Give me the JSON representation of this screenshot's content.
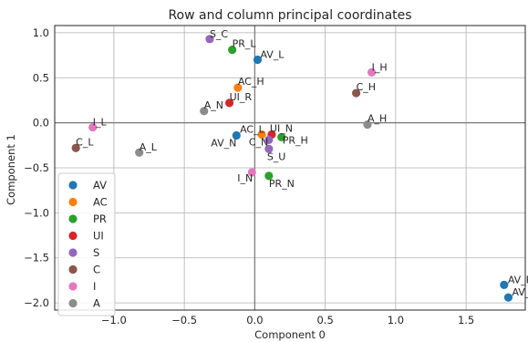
{
  "chart_data": {
    "type": "scatter",
    "title": "Row and column principal coordinates",
    "xlabel": "Component 0",
    "ylabel": "Component 1",
    "xlim": [
      -1.42,
      1.92
    ],
    "ylim": [
      -2.08,
      1.08
    ],
    "xticks": [
      -1.0,
      -0.5,
      0.0,
      0.5,
      1.0,
      1.5
    ],
    "xtick_labels": [
      "−1.0",
      "−0.5",
      "0.0",
      "0.5",
      "1.0",
      "1.5"
    ],
    "yticks": [
      -2.0,
      -1.5,
      -1.0,
      -0.5,
      0.0,
      0.5,
      1.0
    ],
    "ytick_labels": [
      "−2.0",
      "−1.5",
      "−1.0",
      "−0.5",
      "0.0",
      "0.5",
      "1.0"
    ],
    "grid": true,
    "legend_position": "lower-left",
    "zero_lines": true,
    "series": [
      {
        "name": "AV",
        "color": "#1f77b4",
        "points": [
          {
            "x": 0.02,
            "y": 0.7,
            "label": "AV_L",
            "dx": 3,
            "dy": -2
          },
          {
            "x": -0.13,
            "y": -0.14,
            "label": "AV_N",
            "dx": -28,
            "dy": 12
          },
          {
            "x": 1.77,
            "y": -1.8,
            "label": "AV_P",
            "dx": 4,
            "dy": -2
          },
          {
            "x": 1.8,
            "y": -1.94,
            "label": "AV_",
            "dx": 4,
            "dy": -2
          }
        ]
      },
      {
        "name": "AC",
        "color": "#ff7f0e",
        "points": [
          {
            "x": -0.12,
            "y": 0.39,
            "label": "AC_H",
            "dx": 0,
            "dy": -3
          },
          {
            "x": 0.05,
            "y": -0.13,
            "label": "AC_L",
            "dx": -24,
            "dy": -2
          }
        ]
      },
      {
        "name": "PR",
        "color": "#2ca02c",
        "points": [
          {
            "x": -0.16,
            "y": 0.81,
            "label": "PR_L",
            "dx": 0,
            "dy": -3
          },
          {
            "x": 0.19,
            "y": -0.16,
            "label": "PR_H",
            "dx": 1,
            "dy": 7
          },
          {
            "x": 0.1,
            "y": -0.59,
            "label": "PR_N",
            "dx": 0,
            "dy": 12
          }
        ]
      },
      {
        "name": "UI",
        "color": "#d62728",
        "points": [
          {
            "x": -0.18,
            "y": 0.22,
            "label": "UI_R",
            "dx": 0,
            "dy": -3
          },
          {
            "x": 0.12,
            "y": -0.13,
            "label": "UI_N",
            "dx": -2,
            "dy": -3
          }
        ]
      },
      {
        "name": "S",
        "color": "#9467bd",
        "points": [
          {
            "x": -0.32,
            "y": 0.93,
            "label": "S_C",
            "dx": 0,
            "dy": -2
          },
          {
            "x": 0.1,
            "y": -0.29,
            "label": "S_U",
            "dx": -2,
            "dy": 12
          },
          {
            "x": 0.1,
            "y": -0.19,
            "label": "C_N",
            "dx": -22,
            "dy": 6
          }
        ]
      },
      {
        "name": "C",
        "color": "#8c564b",
        "points": [
          {
            "x": 0.72,
            "y": 0.33,
            "label": "C_H",
            "dx": 0,
            "dy": -3
          },
          {
            "x": -1.27,
            "y": -0.28,
            "label": "C_L",
            "dx": 0,
            "dy": -3
          }
        ]
      },
      {
        "name": "I",
        "color": "#e377c2",
        "points": [
          {
            "x": 0.83,
            "y": 0.56,
            "label": "I_H",
            "dx": 0,
            "dy": -2
          },
          {
            "x": -1.15,
            "y": -0.05,
            "label": "I_L",
            "dx": 0,
            "dy": -2
          },
          {
            "x": -0.02,
            "y": -0.55,
            "label": "I_N",
            "dx": -16,
            "dy": 10
          }
        ]
      },
      {
        "name": "A",
        "color": "#8c8c8c",
        "points": [
          {
            "x": -0.36,
            "y": 0.13,
            "label": "A_N",
            "dx": 0,
            "dy": -3
          },
          {
            "x": -0.82,
            "y": -0.33,
            "label": "A_L",
            "dx": 0,
            "dy": -2
          },
          {
            "x": 0.8,
            "y": -0.02,
            "label": "A_H",
            "dx": 0,
            "dy": -3
          }
        ]
      }
    ]
  }
}
